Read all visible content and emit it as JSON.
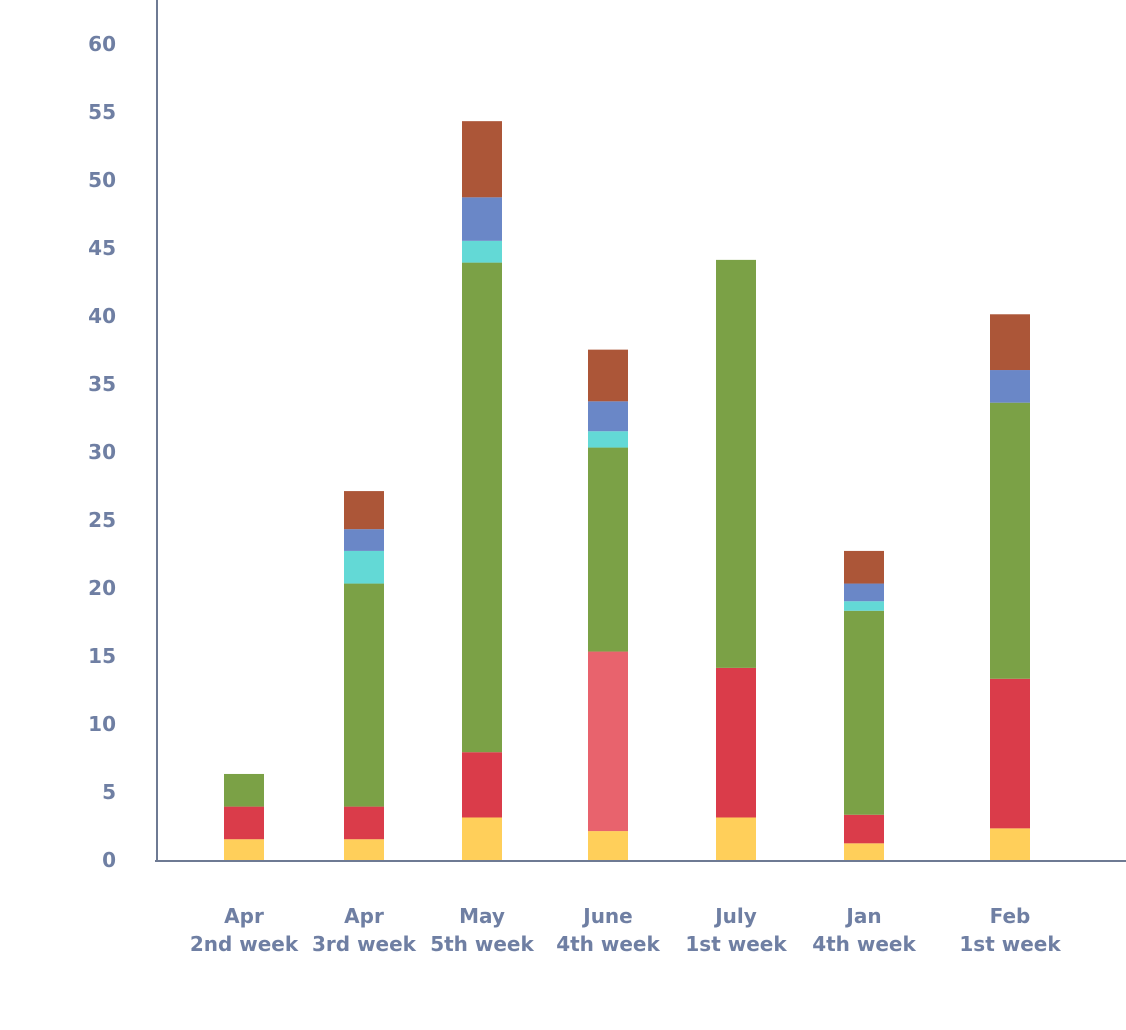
{
  "chart_data": {
    "type": "bar",
    "stacked": true,
    "categories": [
      [
        "Apr",
        "2nd week"
      ],
      [
        "Apr",
        "3rd week"
      ],
      [
        "May",
        "5th week"
      ],
      [
        "June",
        "4th week"
      ],
      [
        "July",
        "1st week"
      ],
      [
        "Jan",
        "4th week"
      ],
      [
        "Feb",
        "1st week"
      ]
    ],
    "series": [
      {
        "color": "#ffcf5a",
        "values": [
          1.6,
          1.6,
          3.2,
          2.2,
          3.2,
          1.3,
          2.4
        ]
      },
      {
        "color": "#da3c4a",
        "values": [
          2.4,
          2.4,
          4.8,
          0,
          11.0,
          2.1,
          11.0
        ]
      },
      {
        "color": "#e8636d",
        "values": [
          0,
          0,
          0,
          13.2,
          0,
          0,
          0
        ]
      },
      {
        "color": "#7ba146",
        "values": [
          2.4,
          16.4,
          36.0,
          15.0,
          30.0,
          15.0,
          20.3
        ]
      },
      {
        "color": "#63d9d6",
        "values": [
          0,
          2.4,
          1.6,
          1.2,
          0,
          0.7,
          0
        ]
      },
      {
        "color": "#6a87c7",
        "values": [
          0,
          1.6,
          3.2,
          2.2,
          0,
          1.3,
          2.4
        ]
      },
      {
        "color": "#ac5638",
        "values": [
          0,
          2.8,
          5.6,
          3.8,
          0,
          2.4,
          4.1
        ]
      }
    ],
    "y_ticks": [
      0,
      5,
      10,
      15,
      20,
      25,
      30,
      35,
      40,
      45,
      50,
      55,
      60
    ],
    "ylim": [
      0,
      62.5
    ],
    "grid": false,
    "axis_color": "#6e7a93",
    "label_color": "#6f7fa3"
  }
}
